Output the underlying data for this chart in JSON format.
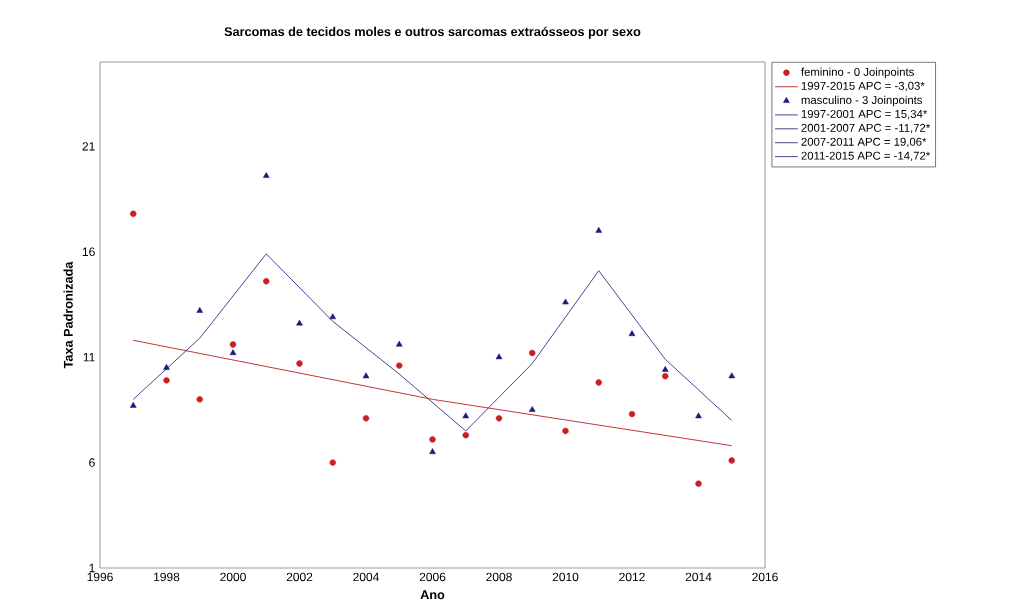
{
  "chart_data": {
    "type": "scatter",
    "title": "Sarcomas de tecidos moles e outros sarcomas extraósseos por sexo",
    "xlabel": "Ano",
    "ylabel": "Taxa Padronizada",
    "xlim": [
      1996,
      2016
    ],
    "xticks": [
      1996,
      1998,
      2000,
      2002,
      2004,
      2006,
      2008,
      2010,
      2012,
      2014,
      2016
    ],
    "ylim": [
      1,
      25
    ],
    "yticks": [
      1,
      6,
      11,
      16,
      21
    ],
    "grid": false,
    "legend": "top right",
    "x": [
      1997,
      1998,
      1999,
      2000,
      2001,
      2002,
      2003,
      2004,
      2005,
      2006,
      2007,
      2008,
      2009,
      2010,
      2011,
      2012,
      2013,
      2014,
      2015
    ],
    "series": [
      {
        "name": "feminino - 0 Joinpoints",
        "marker": "circle",
        "color": "#cc1f1f",
        "values": [
          17.8,
          9.9,
          9.0,
          11.6,
          14.6,
          10.7,
          6.0,
          8.1,
          10.6,
          7.1,
          7.3,
          8.1,
          11.2,
          7.5,
          9.8,
          8.3,
          10.1,
          5.0,
          6.1
        ]
      },
      {
        "name": "1997-2015 APC  = -3,03*",
        "type": "line",
        "color": "#c0282d",
        "x": [
          1997,
          2006,
          2015
        ],
        "values": [
          11.8,
          9.0,
          6.8
        ]
      },
      {
        "name": "masculino - 3 Joinpoints",
        "marker": "triangle",
        "color": "#1a1a80",
        "values": [
          8.7,
          10.5,
          13.2,
          11.2,
          19.6,
          12.6,
          12.9,
          10.1,
          11.6,
          6.5,
          8.2,
          11.0,
          8.5,
          13.6,
          17.0,
          12.1,
          10.4,
          8.2,
          10.1
        ]
      },
      {
        "name": "1997-2001 APC  =  15,34*",
        "type": "line",
        "color": "#3a3a8c",
        "x": [
          1997,
          1999,
          2001
        ],
        "values": [
          9.0,
          11.9,
          15.9
        ]
      },
      {
        "name": "2001-2007 APC  = -11,72*",
        "type": "line",
        "color": "#3a3a8c",
        "x": [
          2001,
          2003,
          2005,
          2007
        ],
        "values": [
          15.9,
          12.7,
          10.2,
          7.5
        ]
      },
      {
        "name": "2007-2011 APC  =  19,06*",
        "type": "line",
        "color": "#3a3a8c",
        "x": [
          2007,
          2009,
          2011
        ],
        "values": [
          7.5,
          10.7,
          15.1
        ]
      },
      {
        "name": "2011-2015 APC  = -14,72*",
        "type": "line",
        "color": "#3a3a8c",
        "x": [
          2011,
          2013,
          2015
        ],
        "values": [
          15.1,
          10.9,
          8.0
        ]
      }
    ]
  }
}
